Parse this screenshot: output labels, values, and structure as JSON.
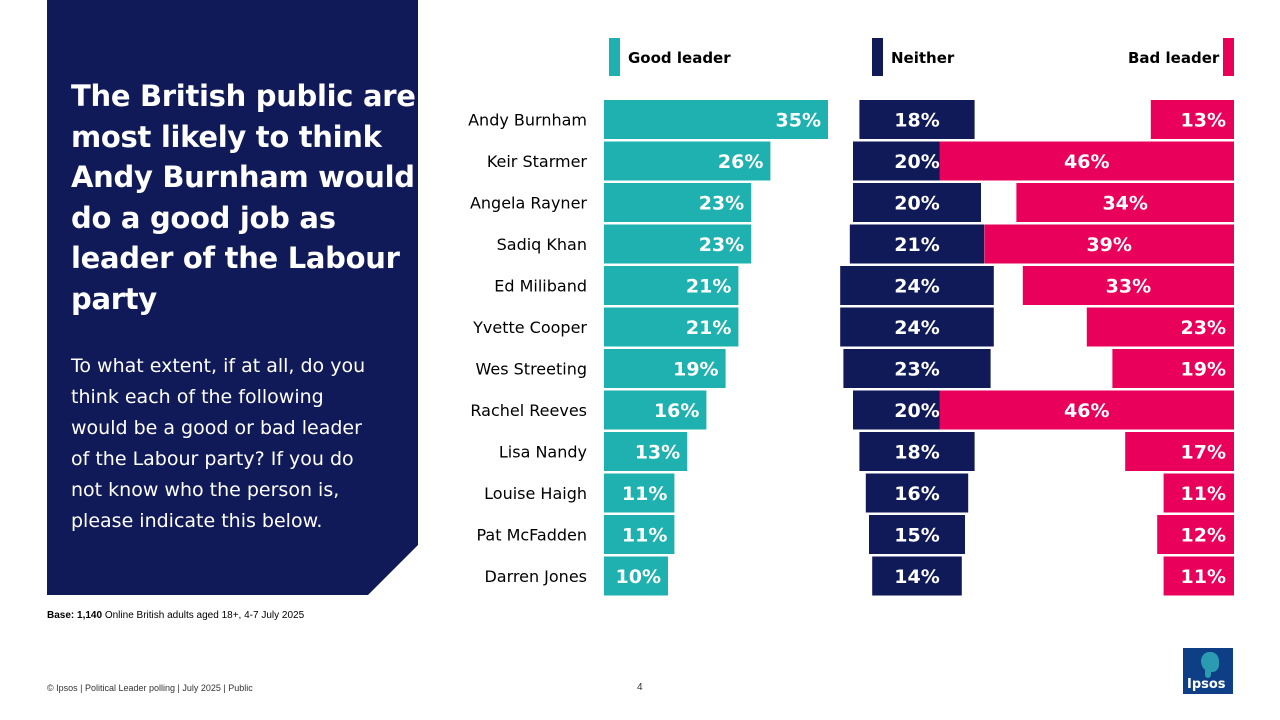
{
  "headline": "The British public are most likely to think Andy Burnham would do a good job as leader of the Labour party",
  "question": "To what extent, if at all, do you think each of the following would be a good or bad leader of the Labour party? If you do not know who the person is, please indicate this below.",
  "base": {
    "label": "Base:",
    "value": "1,140",
    "text": "Online British adults aged 18+,  4-7 July 2025"
  },
  "footer": "© Ipsos | Political Leader polling | July 2025 | Public",
  "page_number": "4",
  "logo_text": "Ipsos",
  "colors": {
    "good": "#1eb1b0",
    "neither": "#111a58",
    "bad": "#e8005a",
    "panel": "#111a58"
  },
  "chart_data": {
    "type": "bar",
    "orientation": "horizontal",
    "legend": [
      "Good leader",
      "Neither",
      "Bad leader"
    ],
    "legend_position": "top",
    "categories": [
      "Andy Burnham",
      "Keir Starmer",
      "Angela Rayner",
      "Sadiq Khan",
      "Ed Miliband",
      "Yvette Cooper",
      "Wes Streeting",
      "Rachel Reeves",
      "Lisa Nandy",
      "Louise Haigh",
      "Pat McFadden",
      "Darren Jones"
    ],
    "series": [
      {
        "name": "Good leader",
        "values": [
          35,
          26,
          23,
          23,
          21,
          21,
          19,
          16,
          13,
          11,
          11,
          10
        ]
      },
      {
        "name": "Neither",
        "values": [
          18,
          20,
          20,
          21,
          24,
          24,
          23,
          20,
          18,
          16,
          15,
          14
        ]
      },
      {
        "name": "Bad leader",
        "values": [
          13,
          46,
          34,
          39,
          33,
          23,
          19,
          46,
          17,
          11,
          12,
          11
        ]
      }
    ],
    "unit": "%"
  }
}
